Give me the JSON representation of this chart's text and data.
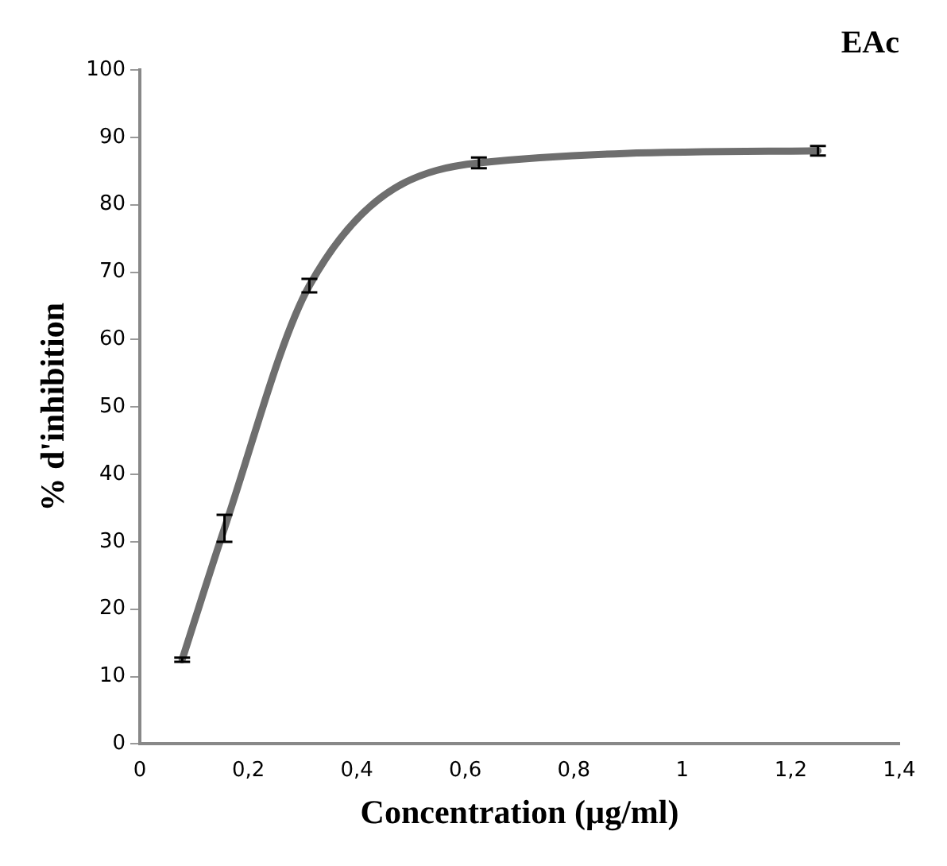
{
  "chart_data": {
    "type": "line",
    "title": "EAc",
    "xlabel": "Concentration (µg/ml)",
    "ylabel": "% d'inhibition",
    "x": [
      0.078,
      0.156,
      0.3125,
      0.625,
      1.25
    ],
    "series": [
      {
        "color": "#6e6e6e",
        "values": [
          12.5,
          32,
          68,
          86.2,
          88
        ],
        "errors": [
          0.3,
          2,
          1,
          0.8,
          0.7
        ]
      }
    ],
    "xlim": [
      0,
      1.4
    ],
    "xticks": [
      0,
      {
        "value": 0.2,
        "label": "0,2"
      },
      {
        "value": 0.4,
        "label": "0,4"
      },
      {
        "value": 0.6,
        "label": "0,6"
      },
      {
        "value": 0.8,
        "label": "0,8"
      },
      1,
      {
        "value": 1.2,
        "label": "1,2"
      },
      {
        "value": 1.4,
        "label": "1,4"
      }
    ],
    "ylim": [
      0,
      100
    ],
    "yticks": [
      0,
      10,
      20,
      30,
      40,
      50,
      60,
      70,
      80,
      90,
      100
    ],
    "grid": false,
    "legend": false,
    "marker": "none",
    "line_style": "solid"
  }
}
